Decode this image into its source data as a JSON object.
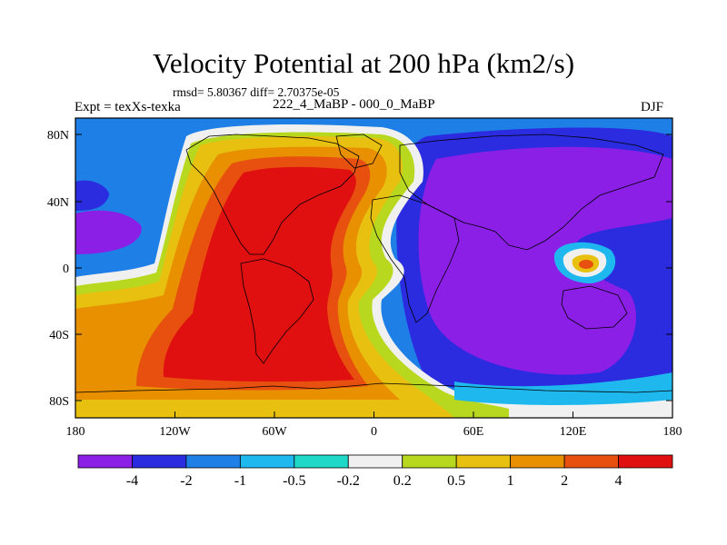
{
  "header": {
    "title": "Velocity Potential at 200 hPa (km2/s)",
    "stats": "rmsd= 5.80367 diff= 2.70375e-05",
    "experiment": "Expt = texXs-texka",
    "comparison": "222_4_MaBP - 000_0_MaBP",
    "season": "DJF"
  },
  "axes": {
    "y_ticks": [
      "80N",
      "40N",
      "0",
      "40S",
      "80S"
    ],
    "x_ticks": [
      "180",
      "120W",
      "60W",
      "0",
      "60E",
      "120E",
      "180"
    ]
  },
  "colorbar": {
    "labels": [
      "-4",
      "-2",
      "-1",
      "-0.5",
      "-0.2",
      "0.2",
      "0.5",
      "1",
      "2",
      "4"
    ],
    "colors": [
      "#8c1fe6",
      "#2b2be0",
      "#1e7fe6",
      "#1fb8ee",
      "#1fd8c8",
      "#f0f0f0",
      "#b8d820",
      "#e8c010",
      "#e89000",
      "#e85010",
      "#e01010"
    ]
  }
}
